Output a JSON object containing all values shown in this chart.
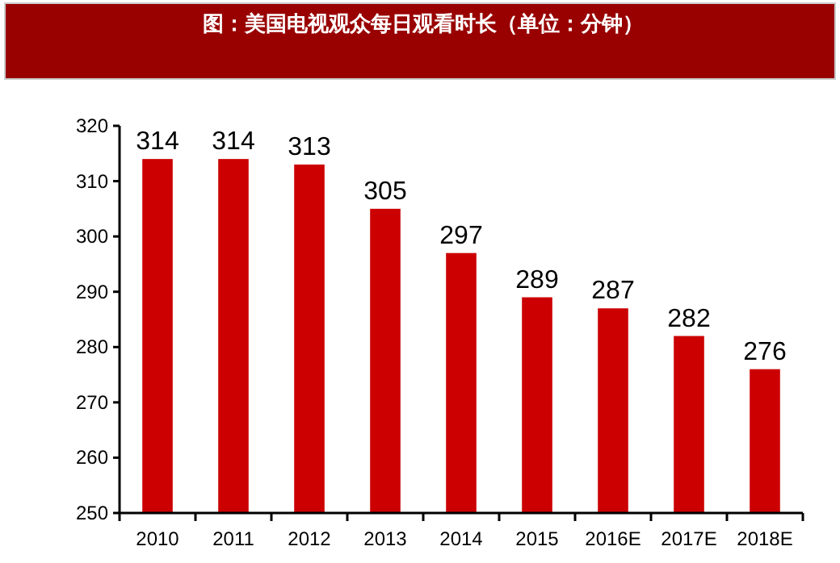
{
  "chart_data": {
    "type": "bar",
    "title": "图：美国电视观众每日观看时长（单位：分钟）",
    "categories": [
      "2010",
      "2011",
      "2012",
      "2013",
      "2014",
      "2015",
      "2016E",
      "2017E",
      "2018E"
    ],
    "values": [
      314,
      314,
      313,
      305,
      297,
      289,
      287,
      282,
      276
    ],
    "color": "#cc0000",
    "ylim": [
      250,
      320
    ],
    "yticks": [
      250,
      260,
      270,
      280,
      290,
      300,
      310,
      320
    ],
    "data_labels": true,
    "grid": false
  }
}
